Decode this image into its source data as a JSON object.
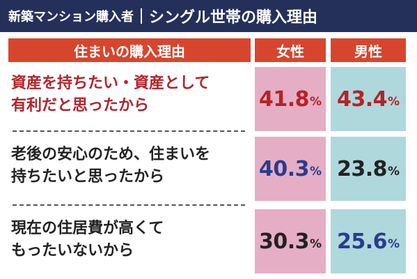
{
  "header": {
    "title_left": "新築マンション購入者",
    "title_right": "シングル世帯の購入理由"
  },
  "table": {
    "columns": [
      "住まいの購入理由",
      "女性",
      "男性"
    ],
    "rows": [
      {
        "reason_lines": [
          "資産を持ちたい・資産として",
          "有利だと思ったから"
        ],
        "female": "41.8",
        "male": "43.4",
        "unit": "%",
        "highlight": true
      },
      {
        "reason_lines": [
          "老後の安心のため、住まいを",
          "持ちたいと思ったから"
        ],
        "female": "40.3",
        "male": "23.8",
        "unit": "%",
        "highlight": false
      },
      {
        "reason_lines": [
          "現在の住居費が高くて",
          "もったいないから"
        ],
        "female": "30.3",
        "male": "25.6",
        "unit": "%",
        "highlight": false
      }
    ]
  },
  "colors": {
    "navy": "#25305a",
    "header_red": "#d8452d",
    "female_bg": "#e6aec4",
    "male_bg": "#aed8dc",
    "value_red": "#b5222a",
    "value_blue": "#2a3b8f",
    "value_black": "#222222"
  }
}
